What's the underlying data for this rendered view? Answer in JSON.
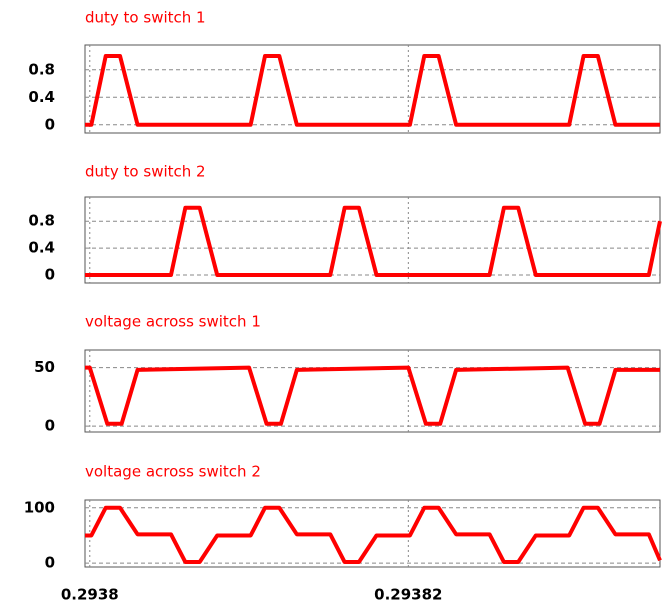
{
  "chart_data": [
    {
      "type": "line",
      "title": "duty to switch 1",
      "x": [
        0.2937997,
        0.2938001,
        0.293801,
        0.2938019,
        0.293803,
        0.2938101,
        0.293811,
        0.2938119,
        0.293813,
        0.2938201,
        0.293821,
        0.2938219,
        0.293823,
        0.2938301,
        0.293831,
        0.2938319,
        0.293833,
        0.2938358
      ],
      "series": [
        {
          "color": "#ff0000",
          "values": [
            0,
            0,
            1,
            1,
            0,
            0,
            1,
            1,
            0,
            0,
            1,
            1,
            0,
            0,
            1,
            1,
            0,
            0
          ]
        }
      ],
      "xlim": [
        0.2937997,
        0.2938358
      ],
      "xticks": [
        0.2938,
        0.29382
      ],
      "ylim": [
        -0.12,
        1.16
      ],
      "yticks": [
        0,
        0.4,
        0.8
      ],
      "grid": true
    },
    {
      "type": "line",
      "title": "duty to switch 2",
      "x": [
        0.2937997,
        0.2938051,
        0.293806,
        0.2938069,
        0.293808,
        0.2938151,
        0.293816,
        0.2938169,
        0.293818,
        0.2938251,
        0.293826,
        0.2938269,
        0.293828,
        0.2938351,
        0.2938358
      ],
      "series": [
        {
          "color": "#ff0000",
          "values": [
            0,
            0,
            1,
            1,
            0,
            0,
            1,
            1,
            0,
            0,
            1,
            1,
            0,
            0,
            0.8
          ]
        }
      ],
      "xlim": [
        0.2937997,
        0.2938358
      ],
      "xticks": [
        0.2938,
        0.29382
      ],
      "ylim": [
        -0.12,
        1.16
      ],
      "yticks": [
        0,
        0.4,
        0.8
      ],
      "grid": true
    },
    {
      "type": "line",
      "title": "voltage across switch 1",
      "x": [
        0.2937997,
        0.2938,
        0.2938011,
        0.293802,
        0.293803,
        0.29381,
        0.2938111,
        0.293812,
        0.293813,
        0.29382,
        0.2938211,
        0.293822,
        0.293823,
        0.29383,
        0.2938311,
        0.293832,
        0.293833,
        0.2938358
      ],
      "series": [
        {
          "color": "#ff0000",
          "values": [
            50,
            50,
            2,
            2,
            48,
            50,
            2,
            2,
            48,
            50,
            2,
            2,
            48,
            50,
            2,
            2,
            48,
            48
          ]
        }
      ],
      "xlim": [
        0.2937997,
        0.2938358
      ],
      "xticks": [
        0.2938,
        0.29382
      ],
      "ylim": [
        -5,
        65
      ],
      "yticks": [
        0,
        50
      ],
      "grid": true
    },
    {
      "type": "line",
      "title": "voltage across switch 2",
      "x": [
        0.2937997,
        0.2938001,
        0.293801,
        0.2938019,
        0.293803,
        0.2938051,
        0.293806,
        0.2938069,
        0.293808,
        0.2938101,
        0.293811,
        0.2938119,
        0.293813,
        0.2938151,
        0.293816,
        0.2938169,
        0.293818,
        0.2938201,
        0.293821,
        0.2938219,
        0.293823,
        0.2938251,
        0.293826,
        0.2938269,
        0.293828,
        0.2938301,
        0.293831,
        0.2938319,
        0.293833,
        0.2938351,
        0.2938358
      ],
      "series": [
        {
          "color": "#ff0000",
          "values": [
            50,
            50,
            100,
            100,
            52,
            52,
            2,
            2,
            50,
            50,
            100,
            100,
            52,
            52,
            2,
            2,
            50,
            50,
            100,
            100,
            52,
            52,
            2,
            2,
            50,
            50,
            100,
            100,
            52,
            52,
            5
          ]
        }
      ],
      "xlim": [
        0.2937997,
        0.2938358
      ],
      "xticks": [
        0.2938,
        0.29382
      ],
      "ylim": [
        -7,
        114
      ],
      "yticks": [
        0,
        100
      ],
      "grid": true
    }
  ]
}
